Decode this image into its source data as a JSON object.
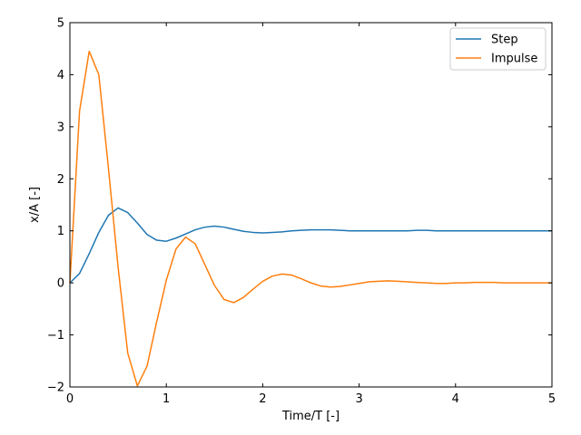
{
  "chart_data": {
    "type": "line",
    "xlabel": "Time/T [-]",
    "ylabel": "x/A [-]",
    "xlim": [
      0,
      5
    ],
    "ylim": [
      -2,
      5
    ],
    "xticks": [
      0,
      1,
      2,
      3,
      4,
      5
    ],
    "yticks": [
      -2,
      -1,
      0,
      1,
      2,
      3,
      4,
      5
    ],
    "xtick_labels": [
      "0",
      "1",
      "2",
      "3",
      "4",
      "5"
    ],
    "ytick_labels": [
      "−2",
      "−1",
      "0",
      "1",
      "2",
      "3",
      "4",
      "5"
    ],
    "grid": false,
    "legend_position": "top-right",
    "x": [
      0,
      0.1,
      0.2,
      0.3,
      0.4,
      0.5,
      0.6,
      0.7,
      0.8,
      0.9,
      1.0,
      1.1,
      1.2,
      1.3,
      1.4,
      1.5,
      1.6,
      1.7,
      1.8,
      1.9,
      2.0,
      2.1,
      2.2,
      2.3,
      2.4,
      2.5,
      2.6,
      2.7,
      2.8,
      2.9,
      3.0,
      3.1,
      3.2,
      3.3,
      3.4,
      3.5,
      3.6,
      3.7,
      3.8,
      3.9,
      4.0,
      4.1,
      4.2,
      4.3,
      4.4,
      4.5,
      4.6,
      4.7,
      4.8,
      4.9,
      5.0
    ],
    "series": [
      {
        "name": "Step",
        "color": "#1f77b4",
        "values": [
          0,
          0.18,
          0.56,
          0.97,
          1.3,
          1.44,
          1.35,
          1.15,
          0.93,
          0.82,
          0.8,
          0.86,
          0.94,
          1.02,
          1.07,
          1.09,
          1.07,
          1.03,
          0.99,
          0.97,
          0.96,
          0.97,
          0.98,
          1.0,
          1.01,
          1.02,
          1.02,
          1.02,
          1.01,
          1.0,
          1.0,
          1.0,
          1.0,
          1.0,
          1.0,
          1.0,
          1.01,
          1.01,
          1.0,
          1.0,
          1.0,
          1.0,
          1.0,
          1.0,
          1.0,
          1.0,
          1.0,
          1.0,
          1.0,
          1.0,
          1.0
        ]
      },
      {
        "name": "Impulse",
        "color": "#ff7f0e",
        "values": [
          0,
          3.3,
          4.45,
          4.0,
          2.2,
          0.3,
          -1.35,
          -1.98,
          -1.6,
          -0.75,
          0.05,
          0.65,
          0.88,
          0.75,
          0.35,
          -0.05,
          -0.32,
          -0.38,
          -0.28,
          -0.12,
          0.03,
          0.13,
          0.17,
          0.15,
          0.08,
          0.0,
          -0.06,
          -0.08,
          -0.07,
          -0.04,
          -0.01,
          0.02,
          0.03,
          0.04,
          0.03,
          0.02,
          0.01,
          0.0,
          -0.01,
          -0.01,
          0.0,
          0.0,
          0.01,
          0.01,
          0.01,
          0.0,
          0.0,
          0.0,
          0.0,
          0.0,
          0.0
        ]
      }
    ]
  }
}
